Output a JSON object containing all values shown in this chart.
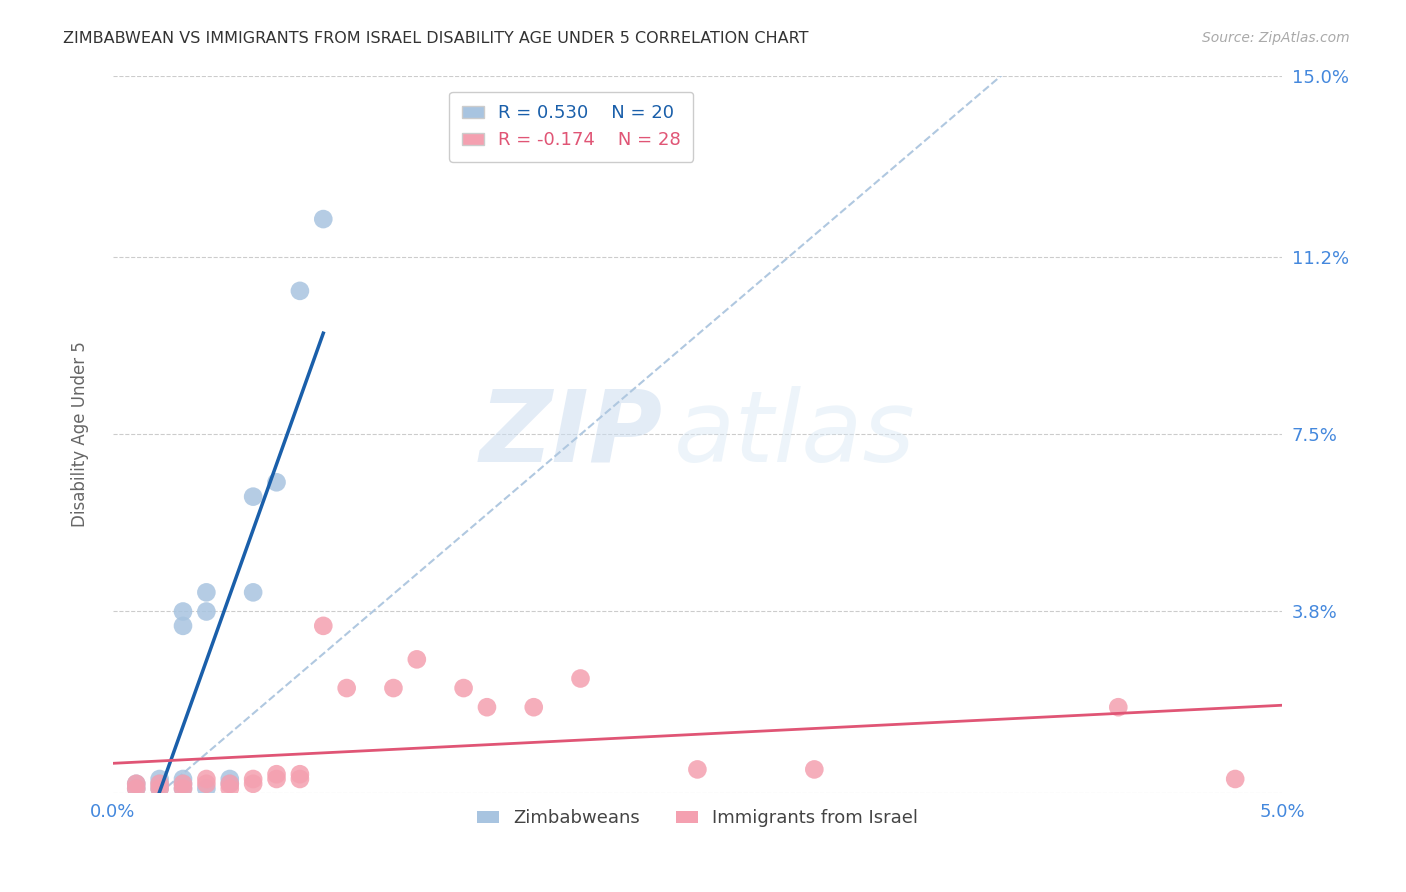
{
  "title": "ZIMBABWEAN VS IMMIGRANTS FROM ISRAEL DISABILITY AGE UNDER 5 CORRELATION CHART",
  "source": "Source: ZipAtlas.com",
  "ylabel": "Disability Age Under 5",
  "xlim": [
    0.0,
    0.05
  ],
  "ylim": [
    0.0,
    0.15
  ],
  "xticks": [
    0.0,
    0.01,
    0.02,
    0.03,
    0.04,
    0.05
  ],
  "xticklabels": [
    "0.0%",
    "",
    "",
    "",
    "",
    "5.0%"
  ],
  "yticks": [
    0.0,
    0.038,
    0.075,
    0.112,
    0.15
  ],
  "yticklabels": [
    "",
    "3.8%",
    "7.5%",
    "11.2%",
    "15.0%"
  ],
  "zimbabwe_r": 0.53,
  "zimbabwe_n": 20,
  "israel_r": -0.174,
  "israel_n": 28,
  "zimbabwe_color": "#a8c4e0",
  "israel_color": "#f4a0b0",
  "zimbabwe_line_color": "#1a5faa",
  "israel_line_color": "#e05575",
  "dashed_line_color": "#b0c8e0",
  "watermark_zip": "ZIP",
  "watermark_atlas": "atlas",
  "zimbabwe_x": [
    0.001,
    0.001,
    0.002,
    0.002,
    0.002,
    0.003,
    0.003,
    0.003,
    0.003,
    0.003,
    0.004,
    0.004,
    0.004,
    0.005,
    0.005,
    0.006,
    0.006,
    0.007,
    0.008,
    0.009
  ],
  "zimbabwe_y": [
    0.001,
    0.002,
    0.001,
    0.002,
    0.003,
    0.001,
    0.002,
    0.003,
    0.035,
    0.038,
    0.001,
    0.038,
    0.042,
    0.002,
    0.003,
    0.042,
    0.062,
    0.065,
    0.105,
    0.12
  ],
  "israel_x": [
    0.001,
    0.001,
    0.002,
    0.002,
    0.003,
    0.003,
    0.004,
    0.004,
    0.005,
    0.005,
    0.006,
    0.006,
    0.007,
    0.007,
    0.008,
    0.008,
    0.009,
    0.01,
    0.012,
    0.013,
    0.015,
    0.016,
    0.018,
    0.02,
    0.025,
    0.03,
    0.043,
    0.048
  ],
  "israel_y": [
    0.001,
    0.002,
    0.001,
    0.002,
    0.001,
    0.002,
    0.002,
    0.003,
    0.001,
    0.002,
    0.002,
    0.003,
    0.003,
    0.004,
    0.003,
    0.004,
    0.035,
    0.022,
    0.022,
    0.028,
    0.022,
    0.018,
    0.018,
    0.024,
    0.005,
    0.005,
    0.018,
    0.003
  ]
}
